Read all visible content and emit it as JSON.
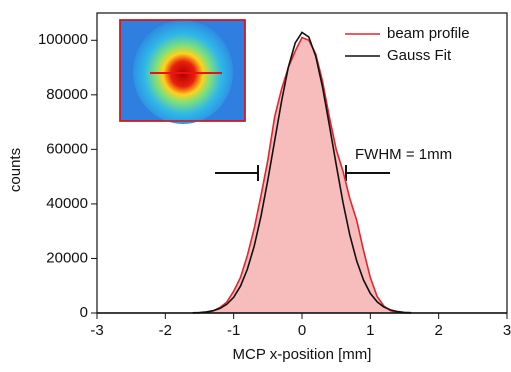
{
  "chart_data": {
    "type": "line",
    "xlabel": "MCP x-position [mm]",
    "ylabel": "counts",
    "annotation": "FWHM = 1mm",
    "x": [
      -1.6,
      -1.5,
      -1.4,
      -1.3,
      -1.2,
      -1.1,
      -1.0,
      -0.9,
      -0.8,
      -0.7,
      -0.6,
      -0.5,
      -0.4,
      -0.3,
      -0.2,
      -0.1,
      0,
      0.1,
      0.2,
      0.3,
      0.4,
      0.5,
      0.6,
      0.7,
      0.8,
      0.9,
      1.0,
      1.1,
      1.2,
      1.3,
      1.4,
      1.5,
      1.6
    ],
    "series": [
      {
        "name": "beam profile",
        "color": "#e3262e",
        "fill": "#f7bcbc",
        "values": [
          0,
          0,
          300,
          800,
          2000,
          4000,
          8000,
          13000,
          21000,
          31000,
          43000,
          56000,
          72000,
          82000,
          90000,
          96000,
          101000,
          100000,
          95000,
          85000,
          72000,
          60000,
          52000,
          42000,
          34000,
          23000,
          13000,
          6000,
          2500,
          800,
          200,
          0,
          0
        ]
      },
      {
        "name": "Gauss Fit",
        "color": "#111111",
        "values": [
          72,
          171,
          387,
          826,
          1670,
          3190,
          5770,
          9870,
          16000,
          24500,
          35500,
          48700,
          63200,
          77500,
          90100,
          99000,
          102900,
          101200,
          94200,
          82900,
          69000,
          54400,
          40500,
          28600,
          19100,
          12100,
          7200,
          4070,
          2180,
          1100,
          528,
          238,
          102
        ]
      }
    ],
    "xlim": [
      -3,
      3
    ],
    "xticks": [
      -3,
      -2,
      -1,
      0,
      1,
      2,
      3
    ],
    "ylim": [
      0,
      110000
    ],
    "yticks": [
      0,
      20000,
      40000,
      60000,
      80000,
      100000
    ],
    "grid": false,
    "legend": "upper right"
  }
}
